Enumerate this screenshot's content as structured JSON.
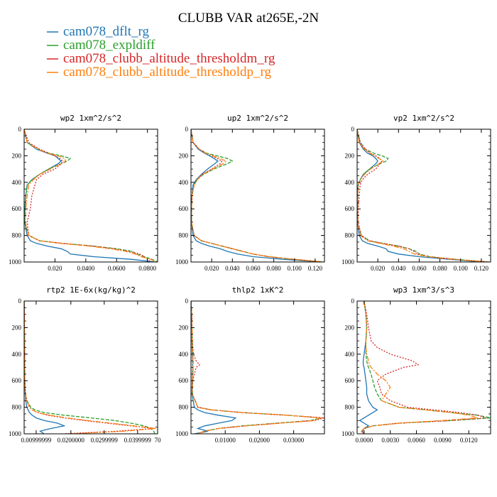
{
  "figure": {
    "title": "CLUBB VAR at265E,-2N"
  },
  "legend": [
    {
      "name": "cam078_dflt_rg",
      "color": "#1f77b4"
    },
    {
      "name": "cam078_expldiff",
      "color": "#2ca02c"
    },
    {
      "name": "cam078_clubb_altitude_thresholdm_rg",
      "color": "#d62728"
    },
    {
      "name": "cam078_clubb_altitude_thresholdp_rg",
      "color": "#ff7f0e"
    }
  ],
  "chart_data": [
    {
      "type": "line",
      "title": "wp2  1xm^2/s^2",
      "ylim": [
        1000,
        0
      ],
      "xlim": [
        0.0,
        0.0866
      ],
      "yticks": [
        0,
        200,
        400,
        600,
        800,
        1000
      ],
      "xticks": [
        {
          "v": 0.02,
          "label": "0.020"
        },
        {
          "v": 0.04,
          "label": "0.0400"
        },
        {
          "v": 0.06,
          "label": "0.0600"
        },
        {
          "v": 0.08,
          "label": "0.0800"
        }
      ],
      "y": [
        0,
        100,
        150,
        180,
        200,
        220,
        240,
        260,
        300,
        340,
        380,
        420,
        500,
        600,
        700,
        800,
        840,
        860,
        880,
        900,
        920,
        940,
        960,
        980,
        1000
      ],
      "series": [
        {
          "values": [
            0.0,
            0.002,
            0.008,
            0.015,
            0.02,
            0.022,
            0.024,
            0.022,
            0.016,
            0.01,
            0.005,
            0.002,
            0.001,
            0.0005,
            0.0003,
            0.002,
            0.004,
            0.008,
            0.015,
            0.024,
            0.028,
            0.03,
            0.045,
            0.07,
            0.085
          ]
        },
        {
          "values": [
            0.0,
            0.002,
            0.009,
            0.016,
            0.024,
            0.03,
            0.028,
            0.024,
            0.016,
            0.01,
            0.005,
            0.002,
            0.001,
            0.0005,
            0.0003,
            0.003,
            0.01,
            0.025,
            0.045,
            0.06,
            0.07,
            0.073,
            0.078,
            0.083,
            0.0866
          ]
        },
        {
          "values": [
            0.0,
            0.003,
            0.01,
            0.016,
            0.02,
            0.023,
            0.025,
            0.024,
            0.02,
            0.012,
            0.008,
            0.007,
            0.005,
            0.004,
            0.002,
            0.003,
            0.01,
            0.025,
            0.045,
            0.058,
            0.068,
            0.075,
            0.078,
            0.08,
            0.082
          ]
        },
        {
          "values": [
            0.0,
            0.002,
            0.009,
            0.015,
            0.022,
            0.026,
            0.027,
            0.024,
            0.017,
            0.01,
            0.006,
            0.003,
            0.002,
            0.001,
            0.0008,
            0.003,
            0.01,
            0.024,
            0.042,
            0.056,
            0.066,
            0.072,
            0.076,
            0.082,
            0.086
          ]
        }
      ]
    },
    {
      "type": "line",
      "title": "up2  1xm^2/s^2",
      "ylim": [
        1000,
        0
      ],
      "xlim": [
        0.0,
        0.129
      ],
      "yticks": [
        0,
        200,
        400,
        600,
        800,
        1000
      ],
      "xticks": [
        {
          "v": 0.02,
          "label": "0.020"
        },
        {
          "v": 0.04,
          "label": "0.040"
        },
        {
          "v": 0.06,
          "label": "0.060"
        },
        {
          "v": 0.08,
          "label": "0.080"
        },
        {
          "v": 0.1,
          "label": "0.100"
        },
        {
          "v": 0.12,
          "label": "0.120"
        }
      ],
      "y": [
        0,
        100,
        150,
        180,
        200,
        220,
        240,
        260,
        300,
        340,
        380,
        420,
        500,
        600,
        700,
        800,
        840,
        860,
        880,
        900,
        920,
        940,
        960,
        980,
        1000
      ],
      "series": [
        {
          "values": [
            0.0,
            0.002,
            0.007,
            0.013,
            0.018,
            0.022,
            0.026,
            0.023,
            0.016,
            0.01,
            0.005,
            0.002,
            0.001,
            0.0005,
            0.0005,
            0.002,
            0.005,
            0.01,
            0.018,
            0.028,
            0.035,
            0.045,
            0.06,
            0.09,
            0.125
          ]
        },
        {
          "values": [
            0.0,
            0.002,
            0.008,
            0.015,
            0.025,
            0.035,
            0.04,
            0.035,
            0.022,
            0.012,
            0.006,
            0.003,
            0.001,
            0.0005,
            0.0005,
            0.003,
            0.01,
            0.02,
            0.03,
            0.04,
            0.05,
            0.06,
            0.075,
            0.1,
            0.129
          ]
        },
        {
          "values": [
            0.0,
            0.002,
            0.008,
            0.014,
            0.02,
            0.025,
            0.03,
            0.028,
            0.02,
            0.011,
            0.006,
            0.003,
            0.001,
            0.0005,
            0.0005,
            0.003,
            0.01,
            0.02,
            0.03,
            0.04,
            0.05,
            0.06,
            0.075,
            0.1,
            0.127
          ]
        },
        {
          "values": [
            0.0,
            0.002,
            0.008,
            0.014,
            0.021,
            0.028,
            0.034,
            0.031,
            0.021,
            0.011,
            0.006,
            0.003,
            0.001,
            0.0005,
            0.0005,
            0.003,
            0.01,
            0.02,
            0.03,
            0.04,
            0.05,
            0.06,
            0.075,
            0.1,
            0.128
          ]
        }
      ]
    },
    {
      "type": "line",
      "title": "vp2  1xm^2/s^2",
      "ylim": [
        1000,
        0
      ],
      "xlim": [
        0.0,
        0.129
      ],
      "yticks": [
        0,
        200,
        400,
        600,
        800,
        1000
      ],
      "xticks": [
        {
          "v": 0.02,
          "label": "0.020"
        },
        {
          "v": 0.04,
          "label": "0.040"
        },
        {
          "v": 0.06,
          "label": "0.060"
        },
        {
          "v": 0.08,
          "label": "0.080"
        },
        {
          "v": 0.1,
          "label": "0.100"
        },
        {
          "v": 0.12,
          "label": "0.120"
        }
      ],
      "y": [
        0,
        100,
        150,
        180,
        200,
        220,
        240,
        260,
        300,
        340,
        380,
        420,
        500,
        600,
        700,
        800,
        840,
        860,
        880,
        900,
        920,
        940,
        960,
        980,
        1000
      ],
      "series": [
        {
          "values": [
            0.0,
            0.002,
            0.006,
            0.01,
            0.015,
            0.018,
            0.02,
            0.018,
            0.012,
            0.006,
            0.003,
            0.001,
            0.0005,
            0.0005,
            0.0005,
            0.002,
            0.005,
            0.01,
            0.02,
            0.028,
            0.03,
            0.04,
            0.06,
            0.09,
            0.12
          ]
        },
        {
          "values": [
            0.0,
            0.003,
            0.008,
            0.016,
            0.024,
            0.03,
            0.028,
            0.022,
            0.012,
            0.006,
            0.003,
            0.001,
            0.0005,
            0.0005,
            0.0005,
            0.004,
            0.012,
            0.025,
            0.04,
            0.05,
            0.057,
            0.06,
            0.07,
            0.095,
            0.128
          ]
        },
        {
          "values": [
            0.0,
            0.003,
            0.008,
            0.013,
            0.018,
            0.022,
            0.024,
            0.022,
            0.018,
            0.01,
            0.005,
            0.003,
            0.002,
            0.001,
            0.001,
            0.004,
            0.012,
            0.025,
            0.04,
            0.05,
            0.055,
            0.058,
            0.07,
            0.095,
            0.127
          ]
        },
        {
          "values": [
            0.0,
            0.002,
            0.007,
            0.012,
            0.017,
            0.021,
            0.025,
            0.021,
            0.013,
            0.007,
            0.003,
            0.001,
            0.0005,
            0.0005,
            0.0005,
            0.003,
            0.01,
            0.022,
            0.035,
            0.045,
            0.05,
            0.055,
            0.068,
            0.093,
            0.126
          ]
        }
      ]
    },
    {
      "type": "line",
      "title": "rtp2  1E-6x(kg/kg)^2",
      "ylim": [
        1000,
        0
      ],
      "xlim": [
        0.0,
        1.0
      ],
      "yticks": [
        0,
        200,
        400,
        600,
        800,
        1000
      ],
      "xticks": [
        {
          "v": 0.09,
          "label": "0.00999999"
        },
        {
          "v": 0.35,
          "label": "0.0200000"
        },
        {
          "v": 0.6,
          "label": "0.0299999"
        },
        {
          "v": 0.85,
          "label": "0.0399999"
        },
        {
          "v": 1.0,
          "label": "70"
        }
      ],
      "y": [
        0,
        100,
        200,
        400,
        600,
        700,
        750,
        800,
        820,
        840,
        860,
        880,
        900,
        920,
        940,
        960,
        980,
        1000
      ],
      "series": [
        {
          "values": [
            0.0,
            0.001,
            0.002,
            0.003,
            0.005,
            0.008,
            0.012,
            0.02,
            0.03,
            0.04,
            0.06,
            0.09,
            0.15,
            0.25,
            0.3,
            0.2,
            0.12,
            0.15
          ]
        },
        {
          "values": [
            0.0,
            0.001,
            0.002,
            0.003,
            0.005,
            0.01,
            0.02,
            0.05,
            0.08,
            0.15,
            0.3,
            0.5,
            0.68,
            0.8,
            0.9,
            0.95,
            0.97,
            0.98
          ]
        },
        {
          "values": [
            0.0,
            0.001,
            0.002,
            0.003,
            0.006,
            0.01,
            0.02,
            0.04,
            0.06,
            0.1,
            0.18,
            0.3,
            0.45,
            0.62,
            0.8,
            0.97,
            0.7,
            0.3
          ]
        },
        {
          "values": [
            0.0,
            0.001,
            0.002,
            0.003,
            0.005,
            0.009,
            0.018,
            0.04,
            0.06,
            0.1,
            0.19,
            0.32,
            0.48,
            0.65,
            0.82,
            0.99,
            0.75,
            0.35
          ]
        }
      ]
    },
    {
      "type": "line",
      "title": "thlp2  1xK^2",
      "ylim": [
        1000,
        0
      ],
      "xlim": [
        0.0,
        0.039
      ],
      "yticks": [
        0,
        200,
        400,
        600,
        800,
        1000
      ],
      "xticks": [
        {
          "v": 0.01,
          "label": "0.01000"
        },
        {
          "v": 0.02,
          "label": "0.02000"
        },
        {
          "v": 0.03,
          "label": "0.03000"
        }
      ],
      "y": [
        0,
        100,
        200,
        300,
        400,
        450,
        480,
        500,
        600,
        700,
        800,
        820,
        840,
        860,
        880,
        900,
        920,
        940,
        960,
        980,
        1000
      ],
      "series": [
        {
          "values": [
            0.0,
            0.0002,
            0.0003,
            0.0003,
            0.0004,
            0.0005,
            0.0005,
            0.0005,
            0.0004,
            0.0003,
            0.001,
            0.002,
            0.004,
            0.008,
            0.013,
            0.012,
            0.008,
            0.004,
            0.002,
            0.005,
            0.001
          ]
        },
        {
          "values": [
            0.0,
            0.0002,
            0.0003,
            0.0004,
            0.0005,
            0.0006,
            0.0006,
            0.0006,
            0.0005,
            0.0004,
            0.002,
            0.006,
            0.015,
            0.028,
            0.038,
            0.035,
            0.025,
            0.015,
            0.008,
            0.004,
            0.002
          ]
        },
        {
          "values": [
            0.0,
            0.0002,
            0.0003,
            0.0004,
            0.0007,
            0.0015,
            0.0025,
            0.0015,
            0.0005,
            0.0004,
            0.002,
            0.006,
            0.015,
            0.028,
            0.039,
            0.036,
            0.026,
            0.016,
            0.008,
            0.004,
            0.002
          ]
        },
        {
          "values": [
            0.0,
            0.0002,
            0.0003,
            0.0004,
            0.0005,
            0.0006,
            0.0006,
            0.0006,
            0.0005,
            0.0004,
            0.002,
            0.006,
            0.015,
            0.028,
            0.038,
            0.036,
            0.026,
            0.016,
            0.008,
            0.004,
            0.002
          ]
        }
      ]
    },
    {
      "type": "line",
      "title": "wp3  1xm^3/s^3",
      "ylim": [
        1000,
        0
      ],
      "xlim": [
        -0.0008,
        0.0145
      ],
      "yticks": [
        0,
        200,
        400,
        600,
        800,
        1000
      ],
      "xticks": [
        {
          "v": 0.0,
          "label": "0.0000"
        },
        {
          "v": 0.003,
          "label": "0.0030"
        },
        {
          "v": 0.006,
          "label": "0.0060"
        },
        {
          "v": 0.009,
          "label": "0.0090"
        },
        {
          "v": 0.012,
          "label": "0.0120"
        }
      ],
      "y": [
        0,
        100,
        200,
        300,
        350,
        400,
        450,
        480,
        500,
        550,
        600,
        650,
        700,
        750,
        800,
        820,
        840,
        860,
        880,
        900,
        920,
        940,
        960,
        980,
        1000
      ],
      "series": [
        {
          "values": [
            0.0,
            0.0002,
            0.0003,
            0.0002,
            0.0001,
            0.0,
            -0.0001,
            -0.0001,
            0.0,
            0.0001,
            0.0002,
            0.0003,
            0.0003,
            0.0005,
            0.001,
            0.0015,
            0.001,
            0.0005,
            0.0,
            -0.0005,
            0.0,
            0.0005,
            0.0,
            -0.0002,
            0.0
          ]
        },
        {
          "values": [
            0.0,
            0.0002,
            0.0003,
            0.0002,
            0.0002,
            0.0002,
            0.0003,
            0.0004,
            0.0005,
            0.0008,
            0.001,
            0.0012,
            0.0015,
            0.002,
            0.004,
            0.007,
            0.01,
            0.013,
            0.0145,
            0.01,
            0.004,
            0.001,
            0.0,
            -0.0003,
            0.0
          ]
        },
        {
          "values": [
            0.0,
            0.0003,
            0.0005,
            0.0008,
            0.0015,
            0.003,
            0.0055,
            0.0062,
            0.0045,
            0.0025,
            0.0015,
            0.0018,
            0.002,
            0.003,
            0.005,
            0.008,
            0.011,
            0.013,
            0.014,
            0.01,
            0.004,
            0.001,
            0.0,
            -0.0003,
            0.0
          ]
        },
        {
          "values": [
            0.0,
            0.0002,
            0.0003,
            0.0002,
            0.0002,
            0.0003,
            0.0005,
            0.0006,
            0.0008,
            0.0015,
            0.0025,
            0.003,
            0.0025,
            0.002,
            0.004,
            0.007,
            0.01,
            0.012,
            0.013,
            0.009,
            0.004,
            0.001,
            0.0,
            -0.0003,
            0.0
          ]
        }
      ]
    }
  ]
}
